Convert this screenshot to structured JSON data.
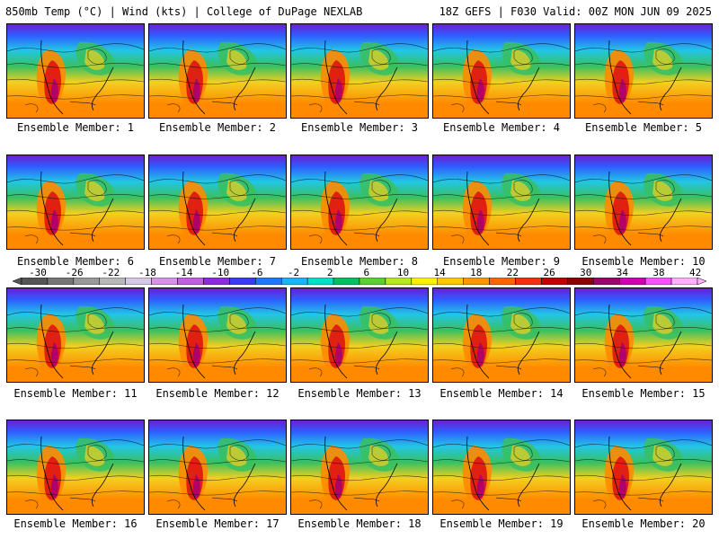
{
  "header": {
    "left": "850mb Temp (°C) | Wind (kts) | College of DuPage NEXLAB",
    "right": "18Z GEFS | F030 Valid: 00Z MON JUN 09 2025"
  },
  "members": [
    "Ensemble Member: 1",
    "Ensemble Member: 2",
    "Ensemble Member: 3",
    "Ensemble Member: 4",
    "Ensemble Member: 5",
    "Ensemble Member: 6",
    "Ensemble Member: 7",
    "Ensemble Member: 8",
    "Ensemble Member: 9",
    "Ensemble Member: 10",
    "Ensemble Member: 11",
    "Ensemble Member: 12",
    "Ensemble Member: 13",
    "Ensemble Member: 14",
    "Ensemble Member: 15",
    "Ensemble Member: 16",
    "Ensemble Member: 17",
    "Ensemble Member: 18",
    "Ensemble Member: 19",
    "Ensemble Member: 20"
  ],
  "colorbar": {
    "ticks": [
      "-30",
      "-26",
      "-22",
      "-18",
      "-14",
      "-10",
      "-6",
      "-2",
      "2",
      "6",
      "10",
      "14",
      "18",
      "22",
      "26",
      "30",
      "34",
      "38",
      "42"
    ],
    "colors": [
      "#555555",
      "#777777",
      "#999999",
      "#b8b8b8",
      "#d6c8e6",
      "#d890e8",
      "#c060e0",
      "#8a2be2",
      "#3a3af0",
      "#1e78ff",
      "#19b4ff",
      "#00e0c8",
      "#00c060",
      "#5cd030",
      "#b8e81e",
      "#fff000",
      "#ffc800",
      "#ff9600",
      "#ff6400",
      "#f03010",
      "#c00000",
      "#900000",
      "#a0006a",
      "#d000b0",
      "#ff50ff",
      "#ffb0ff"
    ]
  },
  "map_colors": {
    "north": "#6b1fd1",
    "cold": "#2f5cff",
    "cool": "#22c6e6",
    "mild": "#38c060",
    "warm": "#f3d020",
    "hot": "#ff8a00",
    "heat": "#e02010",
    "extreme": "#b0006a"
  }
}
